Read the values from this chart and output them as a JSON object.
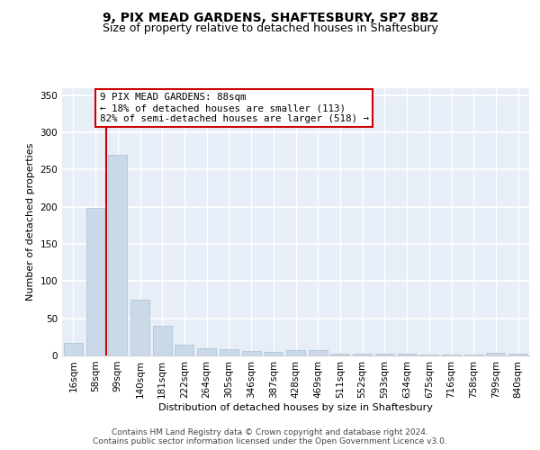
{
  "title1": "9, PIX MEAD GARDENS, SHAFTESBURY, SP7 8BZ",
  "title2": "Size of property relative to detached houses in Shaftesbury",
  "xlabel": "Distribution of detached houses by size in Shaftesbury",
  "ylabel": "Number of detached properties",
  "categories": [
    "16sqm",
    "58sqm",
    "99sqm",
    "140sqm",
    "181sqm",
    "222sqm",
    "264sqm",
    "305sqm",
    "346sqm",
    "387sqm",
    "428sqm",
    "469sqm",
    "511sqm",
    "552sqm",
    "593sqm",
    "634sqm",
    "675sqm",
    "716sqm",
    "758sqm",
    "799sqm",
    "840sqm"
  ],
  "values": [
    17,
    198,
    270,
    75,
    40,
    15,
    10,
    8,
    6,
    5,
    7,
    7,
    3,
    2,
    2,
    2,
    1,
    1,
    1,
    4,
    3
  ],
  "bar_color": "#c9d9e8",
  "bar_edge_color": "#a8bfd4",
  "background_color": "#e8eef8",
  "grid_color": "#ffffff",
  "vline_color": "#cc0000",
  "annotation_text": "9 PIX MEAD GARDENS: 88sqm\n← 18% of detached houses are smaller (113)\n82% of semi-detached houses are larger (518) →",
  "annotation_box_color": "#ffffff",
  "annotation_box_edge": "#cc0000",
  "ylim": [
    0,
    360
  ],
  "yticks": [
    0,
    50,
    100,
    150,
    200,
    250,
    300,
    350
  ],
  "footer": "Contains HM Land Registry data © Crown copyright and database right 2024.\nContains public sector information licensed under the Open Government Licence v3.0.",
  "title_fontsize": 10,
  "subtitle_fontsize": 9,
  "axis_label_fontsize": 8,
  "tick_fontsize": 7.5,
  "footer_fontsize": 6.5
}
